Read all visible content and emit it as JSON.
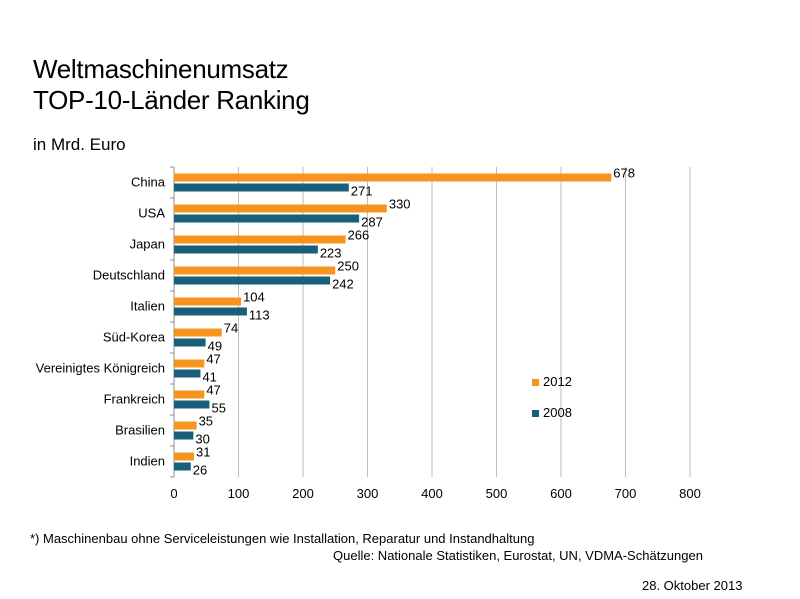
{
  "title_line1": "Weltmaschinenumsatz",
  "title_line2": "TOP-10-Länder Ranking",
  "unit_label": "in Mrd. Euro",
  "footnote": "*) Maschinenbau ohne Serviceleistungen  wie Installation, Reparatur und Instandhaltung",
  "source": "Quelle: Nationale Statistiken, Eurostat, UN, VDMA-Schätzungen",
  "date": "28. Oktober 2013",
  "chart_data": {
    "type": "bar",
    "orientation": "horizontal",
    "categories": [
      "China",
      "USA",
      "Japan",
      "Deutschland",
      "Italien",
      "Süd-Korea",
      "Vereinigtes Königreich",
      "Frankreich",
      "Brasilien",
      "Indien"
    ],
    "series": [
      {
        "name": "2012",
        "color": "#f7941d",
        "values": [
          678,
          330,
          266,
          250,
          104,
          74,
          47,
          47,
          35,
          31
        ]
      },
      {
        "name": "2008",
        "color": "#1a5f7a",
        "values": [
          271,
          287,
          223,
          242,
          113,
          49,
          41,
          55,
          30,
          26
        ]
      }
    ],
    "xlim": [
      0,
      800
    ],
    "xticks": [
      0,
      100,
      200,
      300,
      400,
      500,
      600,
      700,
      800
    ],
    "grid": "vertical",
    "legend_position": "right"
  }
}
